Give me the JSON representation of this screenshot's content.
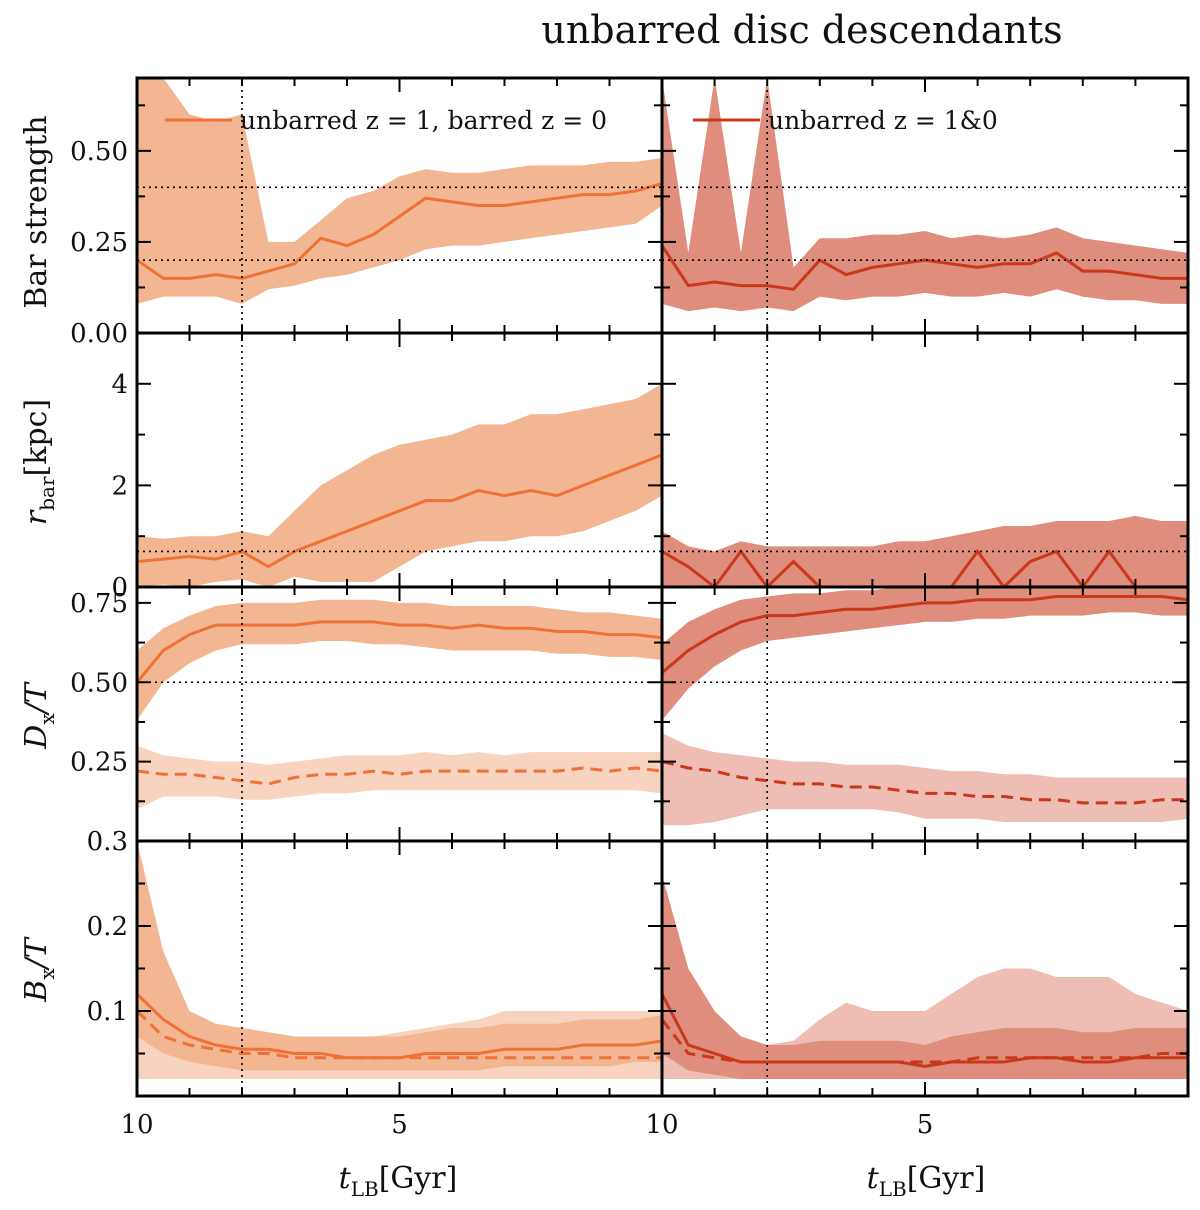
{
  "title": "unbarred disc descendants",
  "colors": {
    "left_line": "#ee7136",
    "left_band": "#f3b693",
    "left_band_light": "#f8d3bf",
    "right_line": "#c9381c",
    "right_band": "#df8d7d",
    "right_band_light": "#eebdb3"
  },
  "xaxis": {
    "label_main": "t",
    "label_sub": "LB",
    "label_unit": "[Gyr]",
    "ticks": [
      "10",
      "5",
      "10",
      "5"
    ],
    "range": [
      10,
      0
    ]
  },
  "rows": [
    {
      "id": "bar_strength",
      "ylabel": "Bar strength",
      "ylim": [
        0,
        0.7
      ],
      "ticks": [
        "0.00",
        "0.25",
        "0.50"
      ],
      "tick_values": [
        0,
        0.25,
        0.5
      ]
    },
    {
      "id": "r_bar",
      "ylabel_main": "r",
      "ylabel_sub": "bar",
      "ylabel_unit": "[kpc]",
      "ylim": [
        0,
        5
      ],
      "ticks": [
        "0",
        "2",
        "4"
      ],
      "tick_values": [
        0,
        2,
        4
      ]
    },
    {
      "id": "dx_t",
      "ylabel_main": "D",
      "ylabel_sub": "x",
      "ylabel_unit": "/T",
      "ylim": [
        0,
        0.8
      ],
      "ticks": [
        "0.25",
        "0.50",
        "0.75"
      ],
      "tick_values": [
        0.25,
        0.5,
        0.75
      ]
    },
    {
      "id": "bx_t",
      "ylabel_main": "B",
      "ylabel_sub": "x",
      "ylabel_unit": "/T",
      "ylim": [
        0,
        0.3
      ],
      "ticks": [
        "0.1",
        "0.2",
        "0.3"
      ],
      "tick_values": [
        0.1,
        0.2,
        0.3
      ]
    }
  ],
  "legend": {
    "left": "unbarred z = 1, barred z = 0",
    "right": "unbarred z = 1&0"
  },
  "chart_data": {
    "type": "line",
    "title": "unbarred disc descendants",
    "xlabel": "t_LB [Gyr]",
    "x": [
      10,
      9.5,
      9,
      8.5,
      8,
      7.5,
      7,
      6.5,
      6,
      5.5,
      5,
      4.5,
      4,
      3.5,
      3,
      2.5,
      2,
      1.5,
      1,
      0.5,
      0
    ],
    "reference_lines": {
      "vertical_x": 8,
      "bar_strength_y": [
        0.2,
        0.4
      ],
      "r_bar_y": 0.7,
      "dx_t_y": 0.5
    },
    "panels": [
      {
        "column": "left",
        "row": "bar_strength",
        "name": "unbarred z = 1, barred z = 0",
        "median": [
          0.2,
          0.15,
          0.15,
          0.16,
          0.15,
          0.17,
          0.19,
          0.26,
          0.24,
          0.27,
          0.32,
          0.37,
          0.36,
          0.35,
          0.35,
          0.36,
          0.37,
          0.38,
          0.38,
          0.39,
          0.41
        ],
        "upper": [
          0.7,
          0.7,
          0.6,
          0.58,
          0.6,
          0.25,
          0.25,
          0.31,
          0.37,
          0.39,
          0.43,
          0.45,
          0.44,
          0.44,
          0.45,
          0.46,
          0.46,
          0.46,
          0.47,
          0.47,
          0.48
        ],
        "lower": [
          0.08,
          0.1,
          0.1,
          0.1,
          0.08,
          0.12,
          0.13,
          0.15,
          0.16,
          0.18,
          0.2,
          0.23,
          0.24,
          0.24,
          0.25,
          0.26,
          0.27,
          0.28,
          0.29,
          0.3,
          0.35
        ]
      },
      {
        "column": "right",
        "row": "bar_strength",
        "name": "unbarred z = 1&0",
        "median": [
          0.24,
          0.13,
          0.14,
          0.13,
          0.13,
          0.12,
          0.2,
          0.16,
          0.18,
          0.19,
          0.2,
          0.19,
          0.18,
          0.19,
          0.19,
          0.22,
          0.17,
          0.17,
          0.16,
          0.15,
          0.15
        ],
        "upper": [
          0.7,
          0.22,
          0.7,
          0.22,
          0.7,
          0.18,
          0.26,
          0.26,
          0.27,
          0.27,
          0.28,
          0.26,
          0.27,
          0.26,
          0.27,
          0.29,
          0.26,
          0.25,
          0.24,
          0.23,
          0.22
        ],
        "lower": [
          0.08,
          0.06,
          0.07,
          0.06,
          0.07,
          0.06,
          0.1,
          0.09,
          0.1,
          0.1,
          0.11,
          0.1,
          0.1,
          0.11,
          0.1,
          0.12,
          0.1,
          0.09,
          0.09,
          0.08,
          0.08
        ]
      },
      {
        "column": "left",
        "row": "r_bar",
        "median": [
          0.5,
          0.55,
          0.6,
          0.55,
          0.7,
          0.4,
          0.7,
          0.9,
          1.1,
          1.3,
          1.5,
          1.7,
          1.7,
          1.9,
          1.8,
          1.9,
          1.8,
          2.0,
          2.2,
          2.4,
          2.6
        ],
        "upper": [
          1.0,
          0.95,
          1.0,
          1.0,
          1.1,
          1.0,
          1.5,
          2.0,
          2.3,
          2.6,
          2.8,
          2.9,
          3.0,
          3.2,
          3.2,
          3.4,
          3.4,
          3.5,
          3.6,
          3.7,
          4.0
        ],
        "lower": [
          0.0,
          0.05,
          0.0,
          0.1,
          0.15,
          0.0,
          0.2,
          0.1,
          0.1,
          0.1,
          0.4,
          0.7,
          0.8,
          0.9,
          0.9,
          1.0,
          1.0,
          1.1,
          1.3,
          1.5,
          1.8
        ]
      },
      {
        "column": "right",
        "row": "r_bar",
        "median": [
          0.7,
          0.4,
          0.0,
          0.7,
          0.0,
          0.5,
          0.0,
          0.0,
          0.0,
          0.0,
          0.0,
          0.0,
          0.7,
          0.0,
          0.5,
          0.7,
          0.0,
          0.7,
          0.0,
          0.0,
          0.0
        ],
        "upper": [
          1.1,
          0.8,
          0.7,
          0.9,
          0.8,
          0.8,
          0.8,
          0.8,
          0.8,
          0.9,
          0.9,
          1.0,
          1.1,
          1.2,
          1.2,
          1.3,
          1.3,
          1.3,
          1.4,
          1.3,
          1.3
        ],
        "lower": [
          0,
          0,
          0,
          0,
          0,
          0,
          0,
          0,
          0,
          0,
          0,
          0,
          0,
          0,
          0,
          0,
          0,
          0,
          0,
          0,
          0
        ]
      },
      {
        "column": "left",
        "row": "dx_t",
        "median": [
          0.5,
          0.6,
          0.65,
          0.68,
          0.68,
          0.68,
          0.68,
          0.69,
          0.69,
          0.69,
          0.68,
          0.68,
          0.67,
          0.68,
          0.67,
          0.67,
          0.66,
          0.66,
          0.65,
          0.65,
          0.64
        ],
        "upper": [
          0.6,
          0.67,
          0.71,
          0.74,
          0.75,
          0.75,
          0.75,
          0.76,
          0.76,
          0.76,
          0.75,
          0.75,
          0.74,
          0.74,
          0.74,
          0.74,
          0.73,
          0.72,
          0.72,
          0.71,
          0.7
        ],
        "lower": [
          0.38,
          0.5,
          0.56,
          0.6,
          0.62,
          0.62,
          0.62,
          0.63,
          0.63,
          0.62,
          0.62,
          0.61,
          0.6,
          0.6,
          0.6,
          0.6,
          0.59,
          0.59,
          0.58,
          0.58,
          0.57
        ],
        "median_dashed": [
          0.22,
          0.21,
          0.21,
          0.2,
          0.19,
          0.18,
          0.2,
          0.21,
          0.21,
          0.22,
          0.21,
          0.22,
          0.22,
          0.22,
          0.22,
          0.22,
          0.22,
          0.23,
          0.22,
          0.23,
          0.22
        ],
        "upper_dashed": [
          0.3,
          0.27,
          0.26,
          0.25,
          0.25,
          0.24,
          0.25,
          0.26,
          0.27,
          0.27,
          0.27,
          0.28,
          0.27,
          0.28,
          0.27,
          0.28,
          0.28,
          0.28,
          0.28,
          0.28,
          0.28
        ],
        "lower_dashed": [
          0.1,
          0.14,
          0.14,
          0.14,
          0.13,
          0.13,
          0.14,
          0.15,
          0.15,
          0.16,
          0.16,
          0.16,
          0.16,
          0.16,
          0.16,
          0.16,
          0.16,
          0.16,
          0.16,
          0.16,
          0.15
        ]
      },
      {
        "column": "right",
        "row": "dx_t",
        "median": [
          0.53,
          0.6,
          0.65,
          0.69,
          0.71,
          0.71,
          0.72,
          0.73,
          0.73,
          0.74,
          0.75,
          0.75,
          0.76,
          0.76,
          0.76,
          0.77,
          0.77,
          0.77,
          0.77,
          0.77,
          0.76
        ],
        "upper": [
          0.62,
          0.69,
          0.73,
          0.76,
          0.77,
          0.78,
          0.78,
          0.79,
          0.79,
          0.8,
          0.8,
          0.8,
          0.8,
          0.8,
          0.8,
          0.8,
          0.8,
          0.8,
          0.8,
          0.8,
          0.8
        ],
        "lower": [
          0.38,
          0.48,
          0.55,
          0.6,
          0.63,
          0.64,
          0.65,
          0.66,
          0.67,
          0.68,
          0.69,
          0.69,
          0.7,
          0.7,
          0.71,
          0.71,
          0.71,
          0.72,
          0.72,
          0.71,
          0.71
        ],
        "median_dashed": [
          0.25,
          0.23,
          0.22,
          0.2,
          0.19,
          0.18,
          0.18,
          0.17,
          0.17,
          0.16,
          0.15,
          0.15,
          0.14,
          0.14,
          0.13,
          0.13,
          0.12,
          0.12,
          0.12,
          0.13,
          0.13
        ],
        "upper_dashed": [
          0.34,
          0.3,
          0.28,
          0.27,
          0.26,
          0.25,
          0.25,
          0.24,
          0.24,
          0.24,
          0.23,
          0.22,
          0.22,
          0.21,
          0.21,
          0.2,
          0.2,
          0.2,
          0.2,
          0.2,
          0.2
        ],
        "lower_dashed": [
          0.05,
          0.05,
          0.06,
          0.08,
          0.1,
          0.1,
          0.1,
          0.1,
          0.1,
          0.09,
          0.07,
          0.07,
          0.07,
          0.06,
          0.06,
          0.06,
          0.06,
          0.06,
          0.06,
          0.06,
          0.07
        ]
      },
      {
        "column": "left",
        "row": "bx_t",
        "median": [
          0.12,
          0.09,
          0.07,
          0.06,
          0.055,
          0.055,
          0.05,
          0.05,
          0.045,
          0.045,
          0.045,
          0.05,
          0.05,
          0.05,
          0.055,
          0.055,
          0.055,
          0.06,
          0.06,
          0.06,
          0.065
        ],
        "upper": [
          0.3,
          0.17,
          0.1,
          0.085,
          0.08,
          0.075,
          0.07,
          0.07,
          0.07,
          0.07,
          0.07,
          0.075,
          0.08,
          0.08,
          0.085,
          0.085,
          0.085,
          0.09,
          0.09,
          0.09,
          0.095
        ],
        "lower": [
          0.07,
          0.05,
          0.04,
          0.035,
          0.03,
          0.03,
          0.03,
          0.03,
          0.03,
          0.03,
          0.03,
          0.03,
          0.03,
          0.03,
          0.035,
          0.035,
          0.035,
          0.035,
          0.035,
          0.04,
          0.04
        ],
        "median_dashed": [
          0.1,
          0.07,
          0.06,
          0.055,
          0.05,
          0.05,
          0.045,
          0.045,
          0.045,
          0.045,
          0.045,
          0.045,
          0.045,
          0.045,
          0.045,
          0.045,
          0.045,
          0.045,
          0.045,
          0.045,
          0.045
        ],
        "upper_dashed": [
          0.18,
          0.12,
          0.09,
          0.08,
          0.08,
          0.075,
          0.07,
          0.07,
          0.07,
          0.07,
          0.075,
          0.08,
          0.085,
          0.09,
          0.1,
          0.1,
          0.1,
          0.1,
          0.1,
          0.1,
          0.1
        ],
        "lower_dashed": [
          0.02,
          0.02,
          0.02,
          0.02,
          0.02,
          0.02,
          0.02,
          0.02,
          0.02,
          0.02,
          0.02,
          0.02,
          0.02,
          0.02,
          0.02,
          0.02,
          0.02,
          0.02,
          0.02,
          0.02,
          0.02
        ]
      },
      {
        "column": "right",
        "row": "bx_t",
        "median": [
          0.12,
          0.06,
          0.05,
          0.04,
          0.04,
          0.04,
          0.04,
          0.04,
          0.04,
          0.04,
          0.035,
          0.04,
          0.04,
          0.04,
          0.045,
          0.045,
          0.04,
          0.04,
          0.045,
          0.045,
          0.045
        ],
        "upper": [
          0.26,
          0.15,
          0.1,
          0.07,
          0.06,
          0.06,
          0.065,
          0.065,
          0.065,
          0.065,
          0.06,
          0.07,
          0.075,
          0.08,
          0.08,
          0.08,
          0.075,
          0.075,
          0.08,
          0.08,
          0.08
        ],
        "lower": [
          0.05,
          0.03,
          0.025,
          0.02,
          0.02,
          0.02,
          0.02,
          0.02,
          0.02,
          0.02,
          0.02,
          0.02,
          0.02,
          0.02,
          0.02,
          0.02,
          0.02,
          0.02,
          0.02,
          0.02,
          0.02
        ],
        "median_dashed": [
          0.09,
          0.05,
          0.045,
          0.04,
          0.04,
          0.04,
          0.04,
          0.04,
          0.04,
          0.04,
          0.04,
          0.04,
          0.045,
          0.045,
          0.045,
          0.045,
          0.045,
          0.045,
          0.045,
          0.05,
          0.05
        ],
        "upper_dashed": [
          0.2,
          0.11,
          0.08,
          0.07,
          0.06,
          0.065,
          0.09,
          0.11,
          0.1,
          0.1,
          0.1,
          0.12,
          0.14,
          0.15,
          0.15,
          0.14,
          0.14,
          0.14,
          0.12,
          0.11,
          0.1
        ],
        "lower_dashed": [
          0.02,
          0.02,
          0.02,
          0.02,
          0.02,
          0.02,
          0.02,
          0.02,
          0.02,
          0.02,
          0.02,
          0.02,
          0.02,
          0.02,
          0.02,
          0.02,
          0.02,
          0.02,
          0.02,
          0.02,
          0.02
        ]
      }
    ]
  }
}
